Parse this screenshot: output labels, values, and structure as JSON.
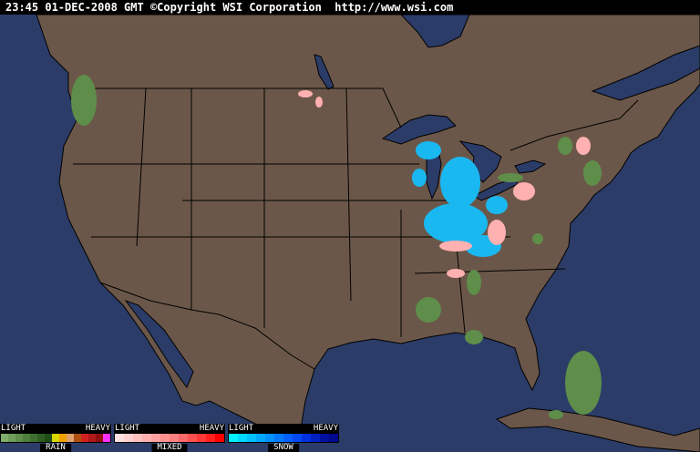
{
  "header": {
    "timestamp": "23:45 01-DEC-2008 GMT",
    "copyright": "©Copyright WSI Corporation",
    "url": "http://www.wsi.com"
  },
  "colors": {
    "water": "#2b3c68",
    "land": "#6b5749",
    "border": "#000000"
  },
  "legend": [
    {
      "name": "RAIN",
      "light": "LIGHT",
      "heavy": "HEAVY",
      "colors": [
        "#80ae6a",
        "#6e9e5a",
        "#5e8e4a",
        "#4e7e3c",
        "#3e6e2e",
        "#2e5e22",
        "#1e4e16",
        "#d8d800",
        "#f0a000",
        "#e0a070",
        "#b05010",
        "#d02020",
        "#b01818",
        "#901010",
        "#ff30ff"
      ]
    },
    {
      "name": "MIXED",
      "light": "LIGHT",
      "heavy": "HEAVY",
      "colors": [
        "#ffe0e0",
        "#ffd0d0",
        "#ffc0c0",
        "#ffb0b0",
        "#ffa0a0",
        "#ff9090",
        "#ff8080",
        "#ff6868",
        "#ff5050",
        "#ff3838",
        "#ff2020",
        "#ff0000"
      ]
    },
    {
      "name": "SNOW",
      "light": "LIGHT",
      "heavy": "HEAVY",
      "colors": [
        "#00f0ff",
        "#00d8ff",
        "#00c0ff",
        "#00a8ff",
        "#0090ff",
        "#0078ff",
        "#0060ff",
        "#0048f0",
        "#0030e0",
        "#0020c0",
        "#0010a0",
        "#000890"
      ]
    }
  ]
}
